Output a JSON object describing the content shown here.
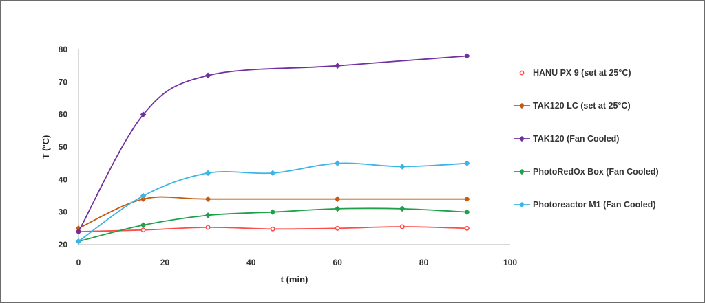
{
  "chart_data": {
    "type": "line",
    "title": "",
    "xlabel": "t (min)",
    "ylabel": "T (°C)",
    "xlim": [
      0,
      100
    ],
    "ylim": [
      20,
      80
    ],
    "xticks": [
      "0",
      "20",
      "40",
      "60",
      "80",
      "100"
    ],
    "yticks": [
      "20",
      "30",
      "40",
      "50",
      "60",
      "70",
      "80"
    ],
    "grid": false,
    "legend_position": "right",
    "series": [
      {
        "name": "HANU PX 9 (set at 25°C)",
        "color": "#ff4a4a",
        "marker": "circle-open",
        "x": [
          0,
          15,
          30,
          45,
          60,
          75,
          90
        ],
        "y": [
          24,
          24.5,
          25.3,
          24.8,
          25,
          25.5,
          25
        ]
      },
      {
        "name": "TAK120 LC (set at 25°C)",
        "color": "#c55a11",
        "marker": "diamond",
        "x": [
          0,
          15,
          30,
          60,
          90
        ],
        "y": [
          25,
          34,
          34,
          34,
          34
        ]
      },
      {
        "name": "TAK120 (Fan Cooled)",
        "color": "#7030a0",
        "marker": "diamond",
        "x": [
          0,
          15,
          30,
          60,
          90
        ],
        "y": [
          24,
          60,
          72,
          75,
          78
        ]
      },
      {
        "name": "PhotoRedOx Box (Fan Cooled)",
        "color": "#1fa04a",
        "marker": "diamond",
        "x": [
          0,
          15,
          30,
          45,
          60,
          75,
          90
        ],
        "y": [
          21,
          26,
          29,
          30,
          31,
          31,
          30
        ]
      },
      {
        "name": "Photoreactor M1 (Fan Cooled)",
        "color": "#3cb4e6",
        "marker": "diamond",
        "x": [
          0,
          15,
          30,
          45,
          60,
          75,
          90
        ],
        "y": [
          21,
          35,
          42,
          42,
          45,
          44,
          45
        ]
      }
    ]
  }
}
